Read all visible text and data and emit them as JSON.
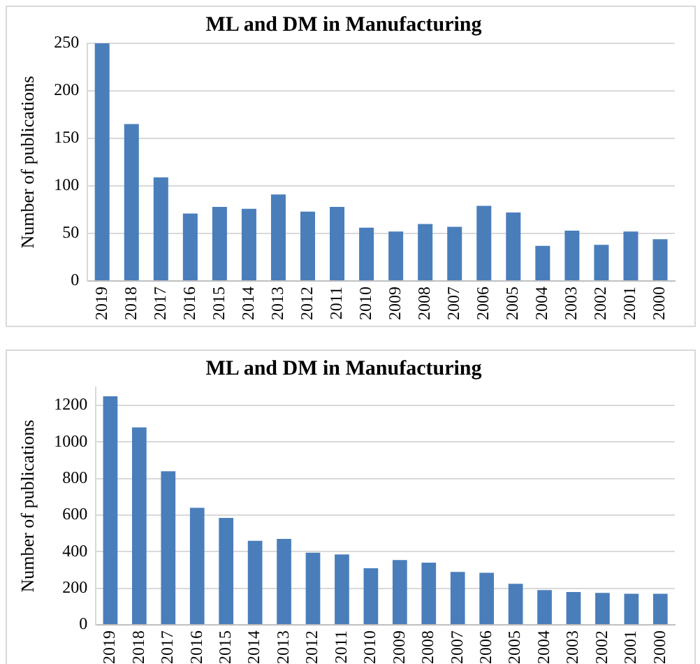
{
  "chart_data": [
    {
      "type": "bar",
      "title": "ML and DM in Manufacturing",
      "ylabel": "Number of publications",
      "categories": [
        "2019",
        "2018",
        "2017",
        "2016",
        "2015",
        "2014",
        "2013",
        "2012",
        "2011",
        "2010",
        "2009",
        "2008",
        "2007",
        "2006",
        "2005",
        "2004",
        "2003",
        "2002",
        "2001",
        "2000"
      ],
      "values": [
        250,
        165,
        109,
        71,
        78,
        76,
        91,
        73,
        78,
        56,
        52,
        60,
        57,
        79,
        72,
        37,
        53,
        38,
        52,
        44
      ],
      "color": "#4a7ebb",
      "ylim": [
        0,
        250
      ],
      "yticks": [
        0,
        50,
        100,
        150,
        200,
        250
      ],
      "grid": "y",
      "legend": false
    },
    {
      "type": "bar",
      "title": "ML and DM in Manufacturing",
      "ylabel": "Number of publications",
      "categories": [
        "2019",
        "2018",
        "2017",
        "2016",
        "2015",
        "2014",
        "2013",
        "2012",
        "2011",
        "2010",
        "2009",
        "2008",
        "2007",
        "2006",
        "2005",
        "2004",
        "2003",
        "2002",
        "2001",
        "2000"
      ],
      "values": [
        1250,
        1080,
        840,
        640,
        585,
        460,
        470,
        395,
        385,
        310,
        355,
        340,
        290,
        285,
        225,
        190,
        180,
        175,
        170,
        170
      ],
      "color": "#4a7ebb",
      "ylim": [
        0,
        1300
      ],
      "yticks": [
        0,
        200,
        400,
        600,
        800,
        1000,
        1200
      ],
      "grid": "y",
      "legend": false
    }
  ]
}
